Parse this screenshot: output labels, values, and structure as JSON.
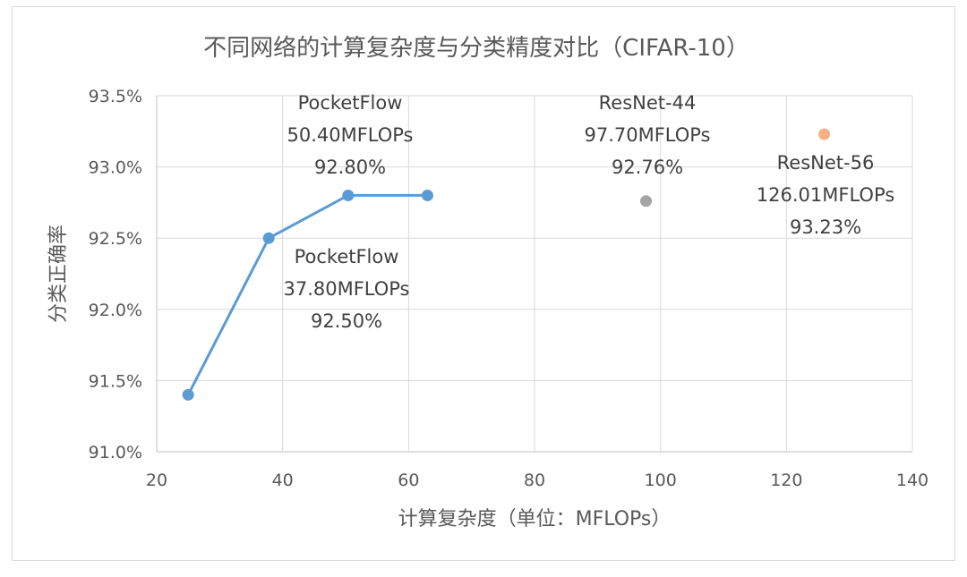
{
  "chart_data": {
    "type": "scatter",
    "title": "不同网络的计算复杂度与分类精度对比（CIFAR-10）",
    "xlabel": "计算复杂度（单位：MFLOPs）",
    "ylabel": "分类正确率",
    "xlim": [
      20,
      140
    ],
    "ylim": [
      91.0,
      93.5
    ],
    "xticks": [
      "20",
      "40",
      "60",
      "80",
      "100",
      "120",
      "140"
    ],
    "yticks": [
      "91.0%",
      "91.5%",
      "92.0%",
      "92.5%",
      "93.0%",
      "93.5%"
    ],
    "grid": true,
    "legend": "none",
    "series": [
      {
        "color": "#5b9bd5",
        "connected": true,
        "points": [
          {
            "x": 25.0,
            "y": 91.4
          },
          {
            "x": 37.8,
            "y": 92.5
          },
          {
            "x": 50.4,
            "y": 92.8
          },
          {
            "x": 63.0,
            "y": 92.8
          }
        ]
      },
      {
        "color": "#a5a5a5",
        "connected": false,
        "points": [
          {
            "x": 97.7,
            "y": 92.76
          }
        ]
      },
      {
        "color": "#f4b183",
        "connected": false,
        "points": [
          {
            "x": 126.01,
            "y": 93.23
          }
        ]
      }
    ],
    "annotations": [
      {
        "name": "annotation-pocketflow-50",
        "lines": [
          "PocketFlow",
          "50.40MFLOPs",
          "92.80%"
        ]
      },
      {
        "name": "annotation-pocketflow-37",
        "lines": [
          "PocketFlow",
          "37.80MFLOPs",
          "92.50%"
        ]
      },
      {
        "name": "annotation-resnet-44",
        "lines": [
          "ResNet-44",
          "97.70MFLOPs",
          "92.76%"
        ]
      },
      {
        "name": "annotation-resnet-56",
        "lines": [
          "ResNet-56",
          "126.01MFLOPs",
          "93.23%"
        ]
      }
    ]
  }
}
